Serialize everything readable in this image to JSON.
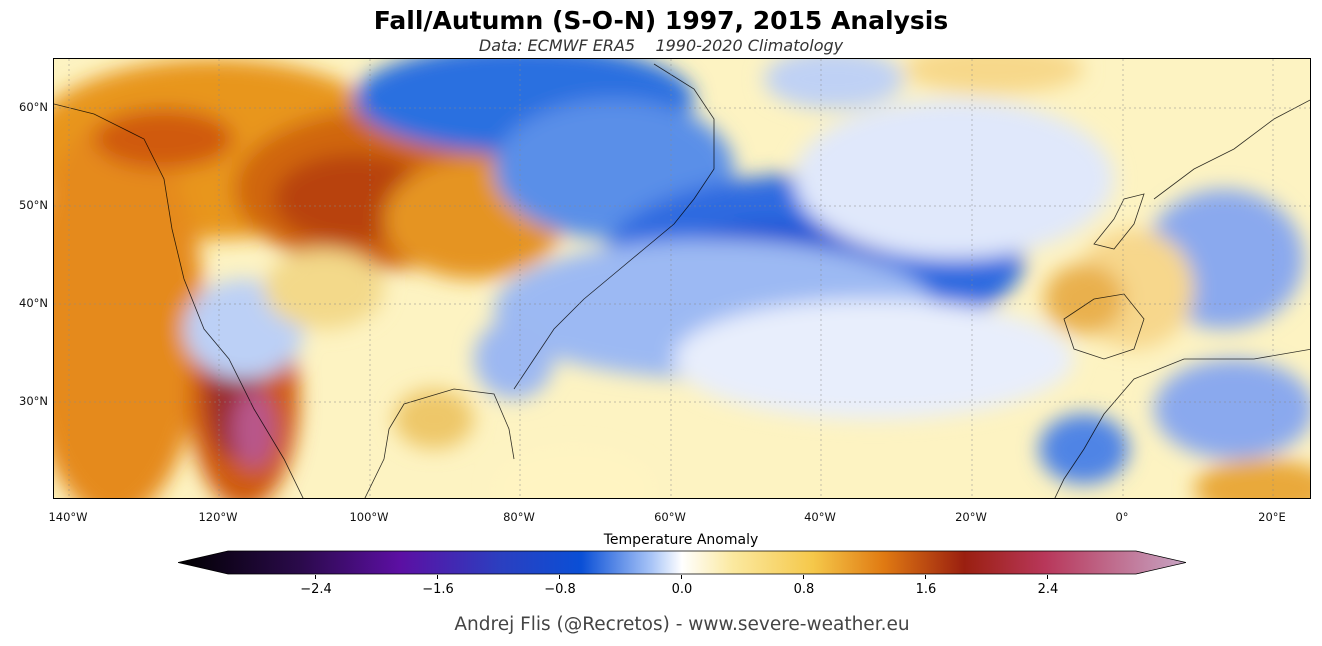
{
  "title": "Fall/Autumn (S-O-N) 1997, 2015 Analysis",
  "subtitle": "Data: ECMWF ERA5    1990-2020 Climatology",
  "map": {
    "projection": "Plate Carree",
    "longitude_range": [
      -142,
      25.5
    ],
    "latitude_range": [
      20,
      65
    ],
    "lat_labels": [
      "60°N",
      "50°N",
      "40°N",
      "30°N"
    ],
    "lon_labels": [
      "140°W",
      "120°W",
      "100°W",
      "80°W",
      "60°W",
      "40°W",
      "20°W",
      "0°",
      "20°E"
    ],
    "gridlines": true,
    "features": [
      "coastlines",
      "country borders",
      "US state borders",
      "Canadian province borders"
    ]
  },
  "colorbar": {
    "label": "Temperature Anomaly",
    "ticks": [
      "−2.4",
      "−1.6",
      "−0.8",
      "0.0",
      "0.8",
      "1.6",
      "2.4"
    ],
    "range": [
      -3.2,
      3.2
    ],
    "extend": "both",
    "colors": {
      "very_negative": "#000000",
      "strong_negative": "#5c0fa3",
      "negative": "#0a4fd6",
      "near_zero": "#ffffff",
      "positive": "#f5c84a",
      "strong_positive": "#9a1f10",
      "very_positive": "#c7a5c4"
    }
  },
  "credit": "Andrej Flis (@Recretos) - www.severe-weather.eu"
}
